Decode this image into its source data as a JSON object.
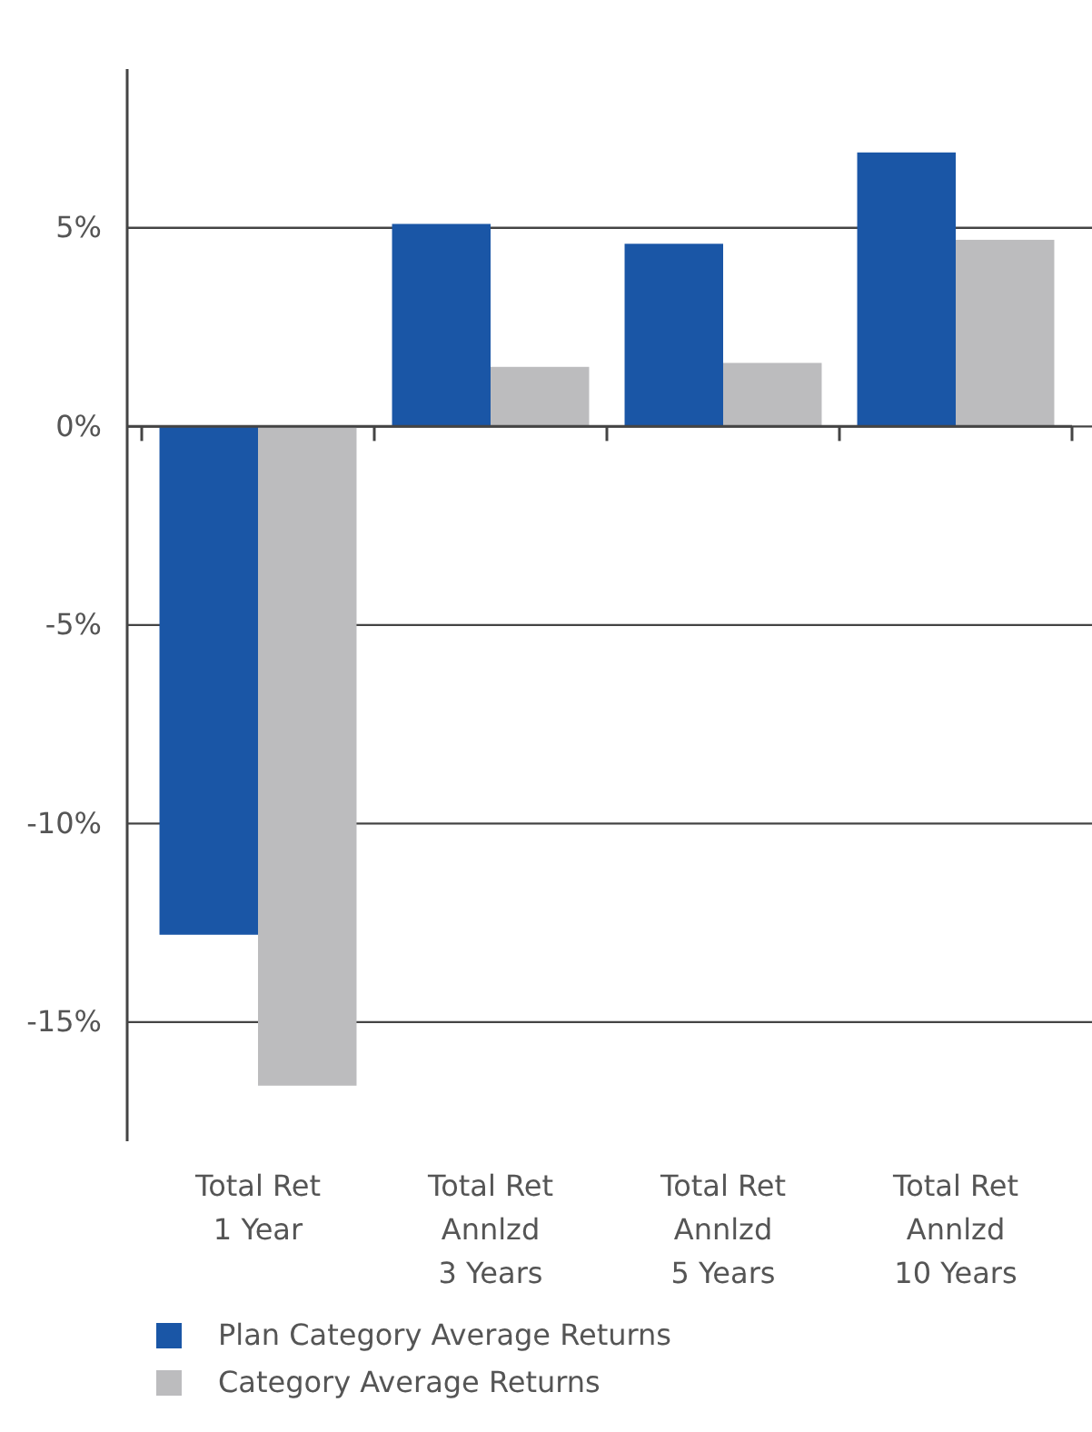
{
  "chart_data": {
    "type": "bar",
    "categories": [
      "Total Ret\n1 Year",
      "Total Ret\nAnnlzd\n3 Years",
      "Total Ret\nAnnlzd\n5 Years",
      "Total Ret\nAnnlzd\n10 Years"
    ],
    "series": [
      {
        "name": "Plan Category Average Returns",
        "color": "#1a56a6",
        "values": [
          -12.8,
          5.1,
          4.6,
          6.9
        ]
      },
      {
        "name": "Category Average Returns",
        "color": "#bcbcbe",
        "values": [
          -16.6,
          1.5,
          1.6,
          4.7
        ]
      }
    ],
    "ylim": [
      -18,
      9
    ],
    "yticks": [
      {
        "value": -15,
        "label": "-15%"
      },
      {
        "value": -10,
        "label": "-10%"
      },
      {
        "value": -5,
        "label": "-5%"
      },
      {
        "value": 0,
        "label": "0%"
      },
      {
        "value": 5,
        "label": "5%"
      }
    ],
    "grid": "y",
    "legend": "bottom"
  }
}
